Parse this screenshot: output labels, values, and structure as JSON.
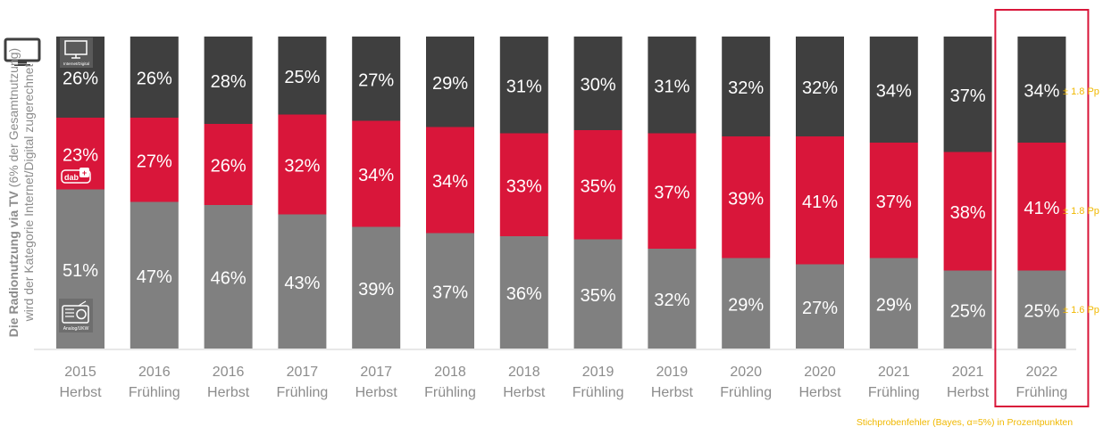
{
  "side_label": {
    "bold": "Die Radionutzung via TV",
    "rest": "(6% der Gesamtnutzung)",
    "line2": "wird der Kategorie Internet/Digital zugerechnet"
  },
  "icons": {
    "digital_label": "Internet/Digital",
    "dab_label": "dab+",
    "analog_label": "Analog/UKW"
  },
  "chart_data": {
    "type": "bar",
    "stacked": true,
    "categories": [
      [
        "2015",
        "Herbst"
      ],
      [
        "2016",
        "Frühling"
      ],
      [
        "2016",
        "Herbst"
      ],
      [
        "2017",
        "Frühling"
      ],
      [
        "2017",
        "Herbst"
      ],
      [
        "2018",
        "Frühling"
      ],
      [
        "2018",
        "Herbst"
      ],
      [
        "2019",
        "Frühling"
      ],
      [
        "2019",
        "Herbst"
      ],
      [
        "2020",
        "Frühling"
      ],
      [
        "2020",
        "Herbst"
      ],
      [
        "2021",
        "Frühling"
      ],
      [
        "2021",
        "Herbst"
      ],
      [
        "2022",
        "Frühling"
      ]
    ],
    "series": [
      {
        "key": "analog",
        "color": "#808080",
        "values": [
          51,
          47,
          46,
          43,
          39,
          37,
          36,
          35,
          32,
          29,
          27,
          29,
          25,
          25
        ]
      },
      {
        "key": "dab",
        "color": "#d9163a",
        "values": [
          23,
          27,
          26,
          32,
          34,
          34,
          33,
          35,
          37,
          39,
          41,
          37,
          38,
          41
        ]
      },
      {
        "key": "digital",
        "color": "#3f3f3f",
        "values": [
          26,
          26,
          28,
          25,
          27,
          29,
          31,
          30,
          31,
          32,
          32,
          34,
          37,
          34
        ]
      }
    ],
    "value_suffix": "%",
    "highlight_index": 13,
    "highlight_color": "#d9163a",
    "error_margins": [
      "± 1.8 Pp",
      "± 1.8 Pp",
      "± 1.6 Pp"
    ],
    "error_note": "Stichprobenfehler (Bayes, α=5%) in Prozentpunkten"
  }
}
